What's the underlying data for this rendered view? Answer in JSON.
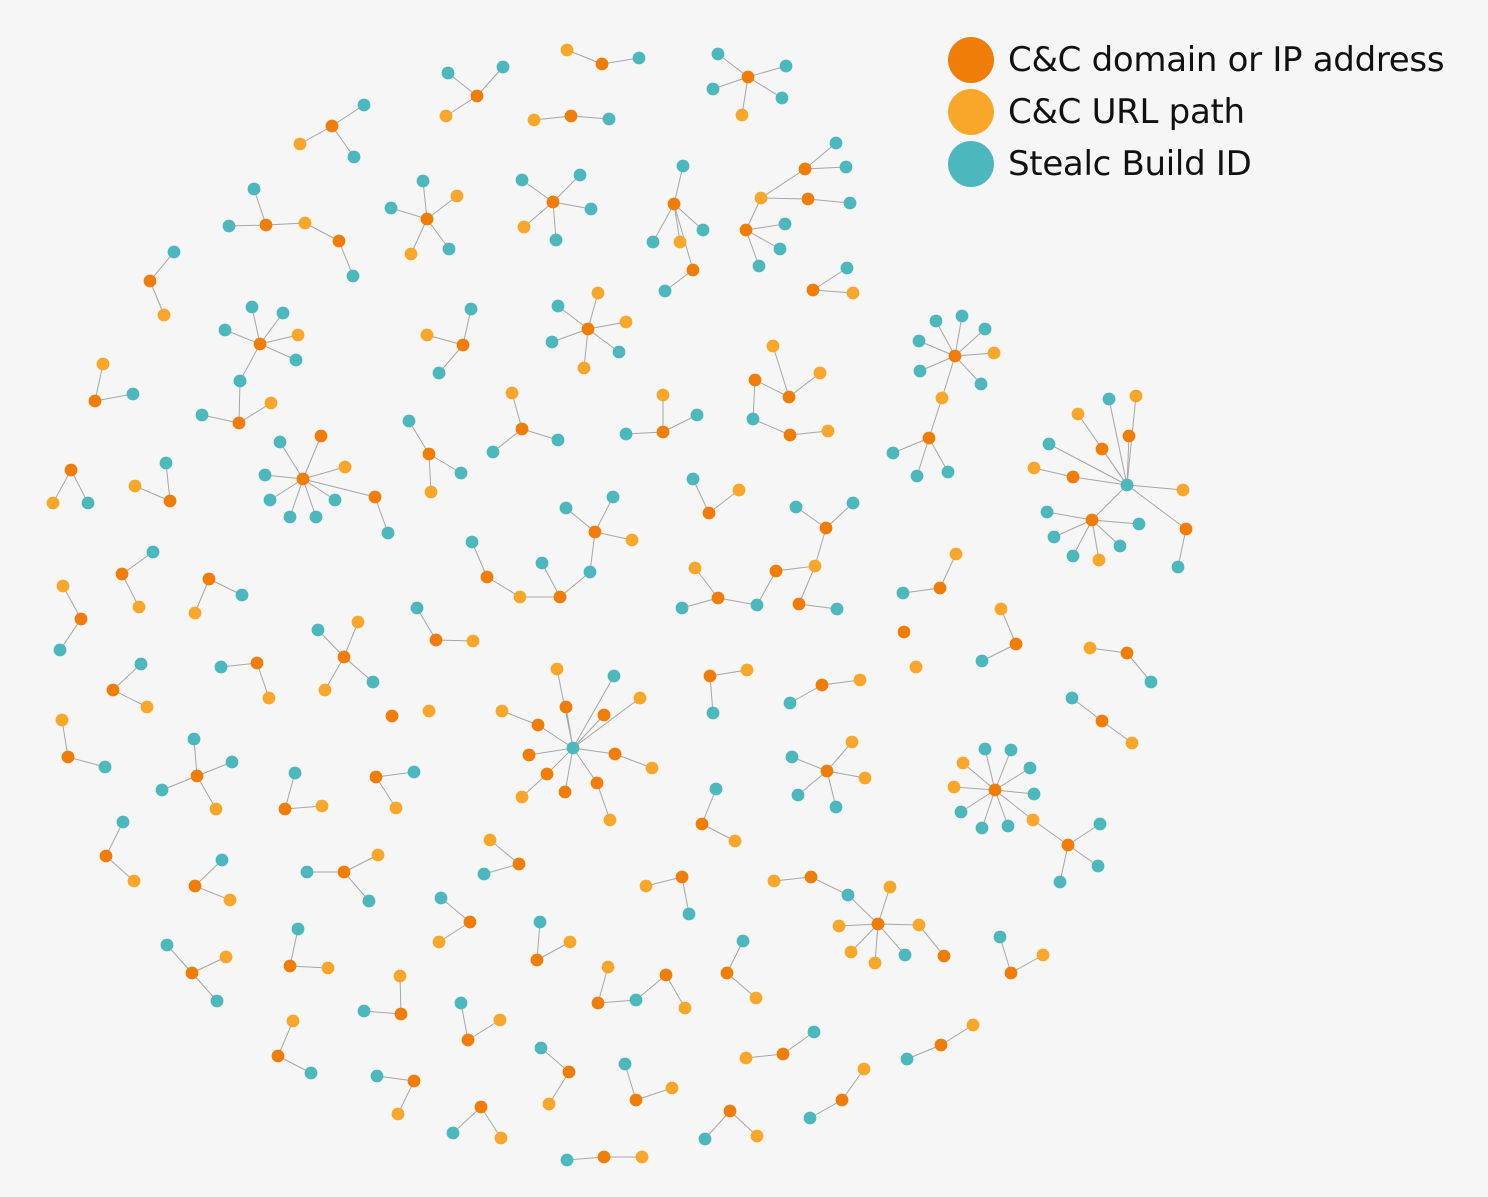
{
  "legend": {
    "items": [
      {
        "key": "d",
        "label": "C&C domain or IP address",
        "color": "#f07d07"
      },
      {
        "key": "u",
        "label": "C&C URL path",
        "color": "#f9a72b"
      },
      {
        "key": "b",
        "label": "Stealc Build ID",
        "color": "#4cb8be"
      }
    ]
  },
  "edge_color": "#a6a6a6"
}
